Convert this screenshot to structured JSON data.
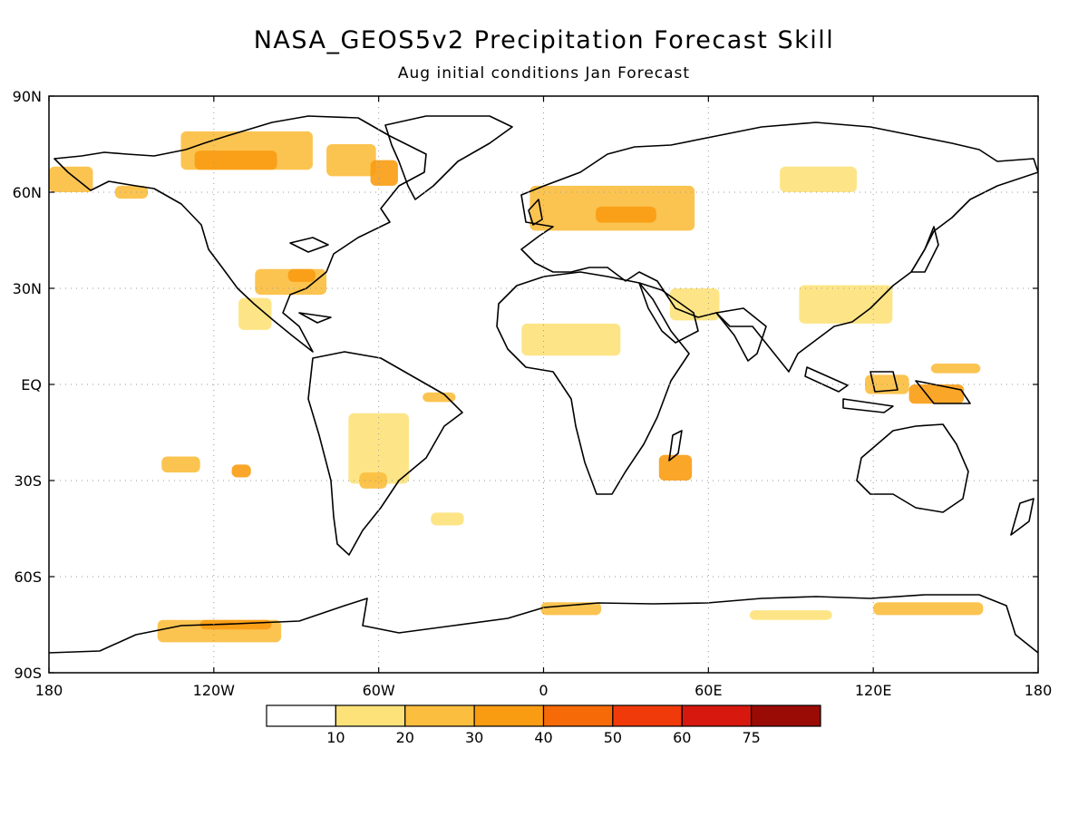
{
  "map": {
    "title": "NASA_GEOS5v2 Precipitation Forecast Skill",
    "subtitle": "Aug initial conditions   Jan Forecast",
    "lat_ticks": [
      {
        "lat": 90,
        "label": "90N"
      },
      {
        "lat": 60,
        "label": "60N"
      },
      {
        "lat": 30,
        "label": "30N"
      },
      {
        "lat": 0,
        "label": "EQ"
      },
      {
        "lat": -30,
        "label": "30S"
      },
      {
        "lat": -60,
        "label": "60S"
      },
      {
        "lat": -90,
        "label": "90S"
      }
    ],
    "lon_ticks": [
      {
        "lon": -180,
        "label": "180"
      },
      {
        "lon": -120,
        "label": "120W"
      },
      {
        "lon": -60,
        "label": "60W"
      },
      {
        "lon": 0,
        "label": "0"
      },
      {
        "lon": 60,
        "label": "60E"
      },
      {
        "lon": 120,
        "label": "120E"
      },
      {
        "lon": 180,
        "label": "180"
      }
    ],
    "grid": true,
    "lon_range": [
      -180,
      180
    ],
    "lat_range": [
      -90,
      90
    ]
  },
  "colorbar": {
    "bins": [
      {
        "color": "#ffffff"
      },
      {
        "color": "#fde27a"
      },
      {
        "color": "#fbbe3e"
      },
      {
        "color": "#f99c12"
      },
      {
        "color": "#f76a08"
      },
      {
        "color": "#f03a0a"
      },
      {
        "color": "#d6180e"
      },
      {
        "color": "#9b0b05"
      }
    ],
    "labels": [
      "10",
      "20",
      "30",
      "40",
      "50",
      "60",
      "75"
    ]
  },
  "chart_data": {
    "type": "heatmap",
    "title": "NASA_GEOS5v2 Precipitation Forecast Skill",
    "subtitle": "Aug initial conditions   Jan Forecast",
    "xlim": [
      -180,
      180
    ],
    "ylim": [
      -90,
      90
    ],
    "levels": [
      10,
      20,
      30,
      40,
      50,
      60,
      75
    ],
    "regions": [
      {
        "lon": -108,
        "lat": 73,
        "w": 48,
        "h": 12,
        "level": 20
      },
      {
        "lon": -112,
        "lat": 70,
        "w": 30,
        "h": 6,
        "level": 30
      },
      {
        "lon": -70,
        "lat": 70,
        "w": 18,
        "h": 10,
        "level": 20
      },
      {
        "lon": -58,
        "lat": 66,
        "w": 10,
        "h": 8,
        "level": 30
      },
      {
        "lon": -172,
        "lat": 64,
        "w": 16,
        "h": 8,
        "level": 20
      },
      {
        "lon": -150,
        "lat": 60,
        "w": 12,
        "h": 4,
        "level": 20
      },
      {
        "lon": -92,
        "lat": 32,
        "w": 26,
        "h": 8,
        "level": 20
      },
      {
        "lon": -88,
        "lat": 34,
        "w": 10,
        "h": 4,
        "level": 30
      },
      {
        "lon": -105,
        "lat": 22,
        "w": 12,
        "h": 10,
        "level": 10
      },
      {
        "lon": 25,
        "lat": 55,
        "w": 60,
        "h": 14,
        "level": 20
      },
      {
        "lon": 30,
        "lat": 53,
        "w": 22,
        "h": 5,
        "level": 30
      },
      {
        "lon": 100,
        "lat": 64,
        "w": 28,
        "h": 8,
        "level": 10
      },
      {
        "lon": 10,
        "lat": 14,
        "w": 36,
        "h": 10,
        "level": 10
      },
      {
        "lon": 55,
        "lat": 25,
        "w": 18,
        "h": 10,
        "level": 10
      },
      {
        "lon": 110,
        "lat": 25,
        "w": 34,
        "h": 12,
        "level": 10
      },
      {
        "lon": 125,
        "lat": 0,
        "w": 16,
        "h": 6,
        "level": 20
      },
      {
        "lon": 143,
        "lat": -3,
        "w": 20,
        "h": 6,
        "level": 30
      },
      {
        "lon": 150,
        "lat": 5,
        "w": 18,
        "h": 3,
        "level": 20
      },
      {
        "lon": 48,
        "lat": -26,
        "w": 12,
        "h": 8,
        "level": 30
      },
      {
        "lon": -60,
        "lat": -20,
        "w": 22,
        "h": 22,
        "level": 10
      },
      {
        "lon": -62,
        "lat": -30,
        "w": 10,
        "h": 5,
        "level": 20
      },
      {
        "lon": -38,
        "lat": -4,
        "w": 12,
        "h": 3,
        "level": 20
      },
      {
        "lon": -132,
        "lat": -25,
        "w": 14,
        "h": 5,
        "level": 20
      },
      {
        "lon": -110,
        "lat": -27,
        "w": 7,
        "h": 4,
        "level": 30
      },
      {
        "lon": -118,
        "lat": -77,
        "w": 45,
        "h": 7,
        "level": 20
      },
      {
        "lon": -112,
        "lat": -75,
        "w": 26,
        "h": 3,
        "level": 30
      },
      {
        "lon": 10,
        "lat": -70,
        "w": 22,
        "h": 4,
        "level": 20
      },
      {
        "lon": 90,
        "lat": -72,
        "w": 30,
        "h": 3,
        "level": 10
      },
      {
        "lon": 140,
        "lat": -70,
        "w": 40,
        "h": 4,
        "level": 20
      },
      {
        "lon": -35,
        "lat": -42,
        "w": 12,
        "h": 4,
        "level": 10
      }
    ]
  }
}
